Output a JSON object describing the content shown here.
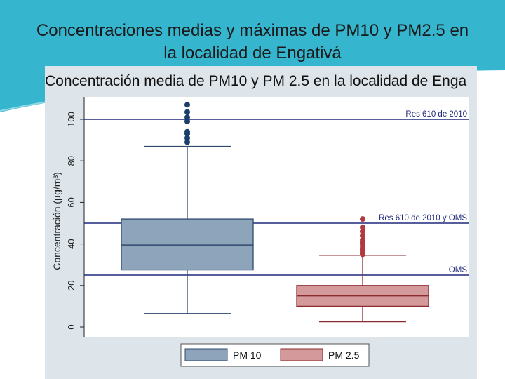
{
  "slide": {
    "title_line1": "Concentraciones medias y máximas de PM10 y PM2.5 en",
    "title_line2": "la localidad de Engativá"
  },
  "colors": {
    "background_teal": "#36b5cf",
    "slide_bg": "#ffffff",
    "chart_bg": "#dde4ea",
    "plot_bg": "#ffffff",
    "reference_line": "#1f2a7a",
    "pm10_box": "#8ea4bb",
    "pm10_edge": "#2e4a6c",
    "pm10_outlier": "#1b3e6b",
    "pm25_box": "#d49a9b",
    "pm25_edge": "#8b2a2f",
    "pm25_outlier": "#b03a40"
  },
  "chart_data": {
    "type": "box",
    "title": "Concentración media de PM10 y PM 2.5 en la localidad de Enga",
    "ylabel": "Concentración (µg/m³)",
    "ylim": [
      0,
      108
    ],
    "yticks": [
      0,
      20,
      40,
      60,
      80,
      100
    ],
    "grid": false,
    "legend_position": "bottom",
    "reference_lines": [
      {
        "y": 100,
        "label": "Res 610 de 2010"
      },
      {
        "y": 50,
        "label": "Res 610 de 2010 y OMS"
      },
      {
        "y": 25,
        "label": "OMS"
      }
    ],
    "series": [
      {
        "name": "PM 10",
        "whisker_low": 6.5,
        "q1": 27.5,
        "median": 39.5,
        "q3": 52,
        "whisker_high": 87,
        "outliers": [
          89,
          91,
          93,
          94,
          99,
          101,
          103.5,
          107
        ]
      },
      {
        "name": "PM 2.5",
        "whisker_low": 2.5,
        "q1": 10,
        "median": 15,
        "q3": 20,
        "whisker_high": 34.5,
        "outliers": [
          35,
          35.5,
          36,
          37,
          37.5,
          38,
          39,
          40,
          40.5,
          41,
          42,
          44,
          46,
          48,
          52
        ]
      }
    ]
  }
}
